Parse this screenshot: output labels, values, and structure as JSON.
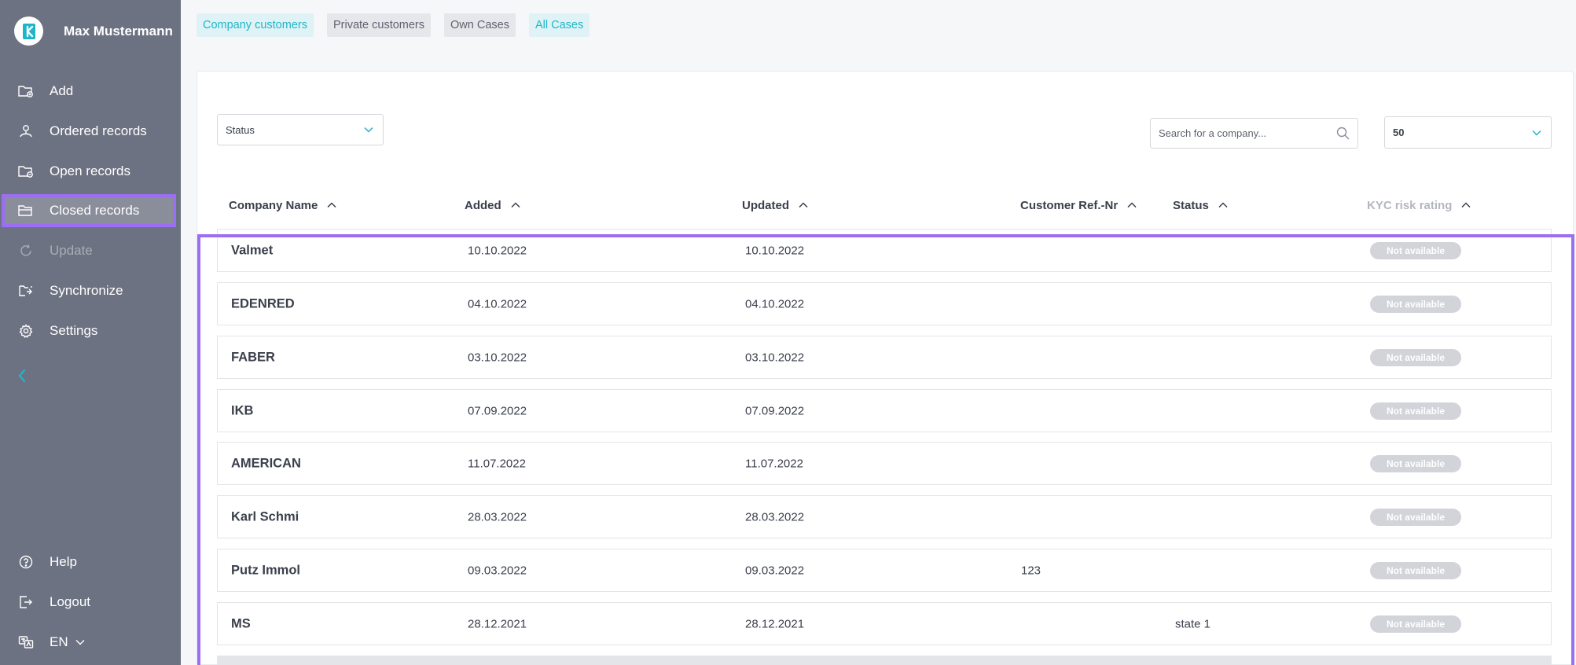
{
  "app": {
    "user_name": "Max Mustermann",
    "accent_color": "#1fb5c8",
    "highlight_color": "#9b6ef3"
  },
  "sidebar": {
    "items": [
      {
        "label": "Add",
        "icon": "add-folder-icon"
      },
      {
        "label": "Ordered records",
        "icon": "person-icon"
      },
      {
        "label": "Open records",
        "icon": "open-folder-icon"
      },
      {
        "label": "Closed records",
        "icon": "closed-folder-icon",
        "active": true
      },
      {
        "label": "Update",
        "icon": "refresh-icon",
        "disabled": true
      },
      {
        "label": "Synchronize",
        "icon": "sync-icon"
      },
      {
        "label": "Settings",
        "icon": "gear-icon"
      }
    ],
    "collapse_icon": "chevron-left-icon",
    "bottom_items": [
      {
        "label": "Help",
        "icon": "help-icon"
      },
      {
        "label": "Logout",
        "icon": "logout-icon"
      },
      {
        "label": "EN",
        "icon": "language-icon"
      }
    ]
  },
  "tabs": [
    {
      "label": "Company customers",
      "highlighted": true
    },
    {
      "label": "Private customers",
      "highlighted": false
    },
    {
      "label": "Own Cases",
      "highlighted": false
    },
    {
      "label": "All Cases",
      "highlighted": true
    }
  ],
  "filters": {
    "status_select": "Status",
    "search_placeholder": "Search for a company...",
    "per_page": "50"
  },
  "table": {
    "headers": [
      "Company Name",
      "Added",
      "Updated",
      "Customer Ref.-Nr",
      "Status",
      "KYC risk rating"
    ],
    "rows": [
      {
        "name": "Valmet",
        "added": "10.10.2022",
        "updated": "10.10.2022",
        "ref": "",
        "status": "",
        "kyc": "Not available"
      },
      {
        "name": "EDENRED",
        "added": "04.10.2022",
        "updated": "04.10.2022",
        "ref": "",
        "status": "",
        "kyc": "Not available"
      },
      {
        "name": "FABER",
        "added": "03.10.2022",
        "updated": "03.10.2022",
        "ref": "",
        "status": "",
        "kyc": "Not available"
      },
      {
        "name": "IKB",
        "added": "07.09.2022",
        "updated": "07.09.2022",
        "ref": "",
        "status": "",
        "kyc": "Not available"
      },
      {
        "name": "AMERICAN",
        "added": "11.07.2022",
        "updated": "11.07.2022",
        "ref": "",
        "status": "",
        "kyc": "Not available"
      },
      {
        "name": "Karl Schmi",
        "added": "28.03.2022",
        "updated": "28.03.2022",
        "ref": "",
        "status": "",
        "kyc": "Not available"
      },
      {
        "name": "Putz Immol",
        "added": "09.03.2022",
        "updated": "09.03.2022",
        "ref": "123",
        "status": "",
        "kyc": "Not available"
      },
      {
        "name": "MS",
        "added": "28.12.2021",
        "updated": "28.12.2021",
        "ref": "",
        "status": "state 1",
        "kyc": "Not available"
      }
    ]
  }
}
